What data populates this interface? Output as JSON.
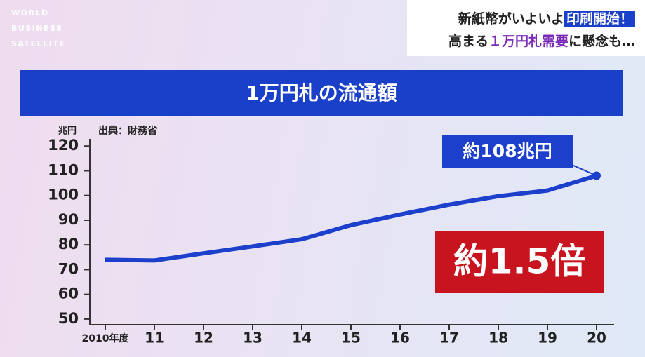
{
  "logo": [
    "WORLD",
    "BUSINESS",
    "SATELLITE"
  ],
  "headline": {
    "line1": [
      "新紙幣がいよいよ",
      "印刷開始！"
    ],
    "line2": [
      "高まる",
      "１万円札需要",
      "に懸念も…"
    ]
  },
  "chart_data": {
    "type": "line",
    "title": "1万円札の流通額",
    "y_unit": "兆円",
    "source": "出典：財務省",
    "categories": [
      "2010年度",
      "11",
      "12",
      "13",
      "14",
      "15",
      "16",
      "17",
      "18",
      "19",
      "20"
    ],
    "values": [
      74,
      73.7,
      76.6,
      79.4,
      82.3,
      88,
      92.3,
      96.3,
      99.7,
      102,
      108
    ],
    "color": "#1c3fcc",
    "ylim": [
      47.7,
      122.9
    ],
    "yticks": [
      50,
      60,
      70,
      80,
      90,
      100,
      110,
      120
    ],
    "grid": false,
    "annotations": [
      "約108兆円",
      "約1.5倍"
    ]
  }
}
